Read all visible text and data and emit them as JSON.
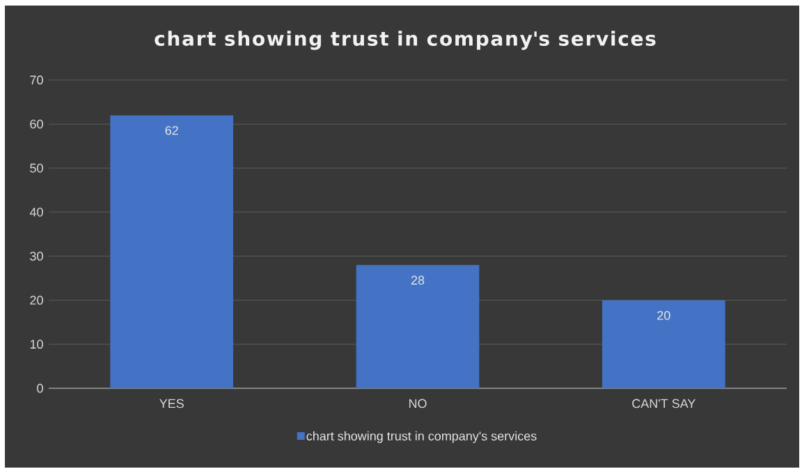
{
  "chart_data": {
    "type": "bar",
    "title": "chart showing trust in company's services",
    "categories": [
      "YES",
      "NO",
      "CAN'T SAY"
    ],
    "series": [
      {
        "name": "chart showing trust in company's services",
        "color": "#4472c4",
        "values": [
          62,
          28,
          20
        ]
      }
    ],
    "ylim": [
      0,
      70
    ],
    "yticks": [
      0,
      10,
      20,
      30,
      40,
      50,
      60,
      70
    ],
    "grid": "y",
    "legend": "bottom",
    "data_labels": true
  }
}
